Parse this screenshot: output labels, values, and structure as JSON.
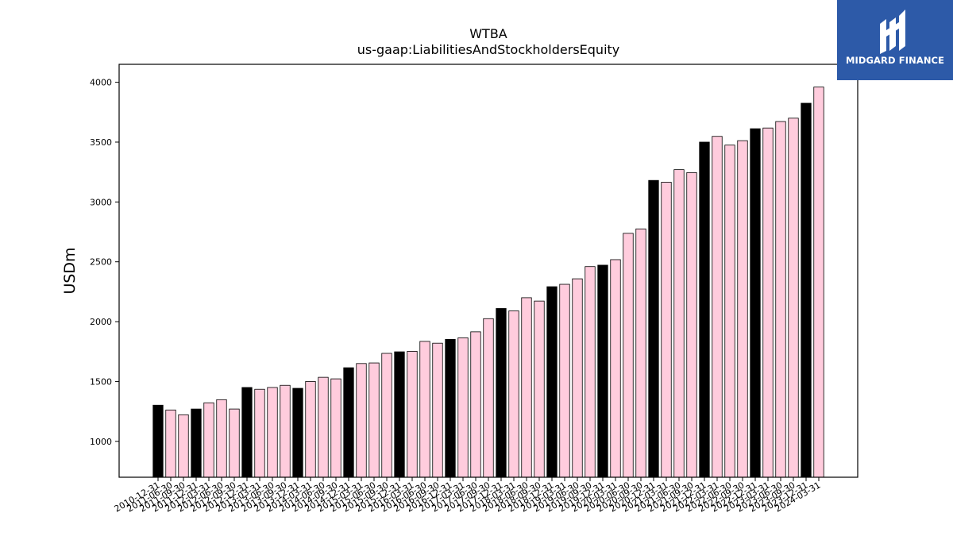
{
  "brand": {
    "name": "MIDGARD FINANCE",
    "icon": "midgard-logo-mark",
    "background_color": "#2d5aa8"
  },
  "chart_data": {
    "type": "bar",
    "title": "WTBA",
    "subtitle": "us-gaap:LiabilitiesAndStockholdersEquity",
    "xlabel": "",
    "ylabel": "USDm",
    "ylim": [
      700,
      4150
    ],
    "yticks": [
      1000,
      1500,
      2000,
      2500,
      3000,
      3500,
      4000
    ],
    "grid": false,
    "colors": {
      "annual": "#000000",
      "quarterly": "#ffccdd",
      "edge": "#000000"
    },
    "categories": [
      "2010-12-31",
      "2011-06-30",
      "2011-09-30",
      "2011-12-31",
      "2012-03-31",
      "2012-06-30",
      "2012-09-30",
      "2012-12-31",
      "2013-03-31",
      "2013-06-30",
      "2013-09-30",
      "2013-12-31",
      "2014-03-31",
      "2014-06-30",
      "2014-09-30",
      "2014-12-31",
      "2015-03-31",
      "2015-06-30",
      "2015-09-30",
      "2015-12-31",
      "2016-03-31",
      "2016-06-30",
      "2016-09-30",
      "2016-12-31",
      "2017-03-31",
      "2017-06-30",
      "2017-09-30",
      "2017-12-31",
      "2018-03-31",
      "2018-06-30",
      "2018-09-30",
      "2018-12-31",
      "2019-03-31",
      "2019-06-30",
      "2019-09-30",
      "2019-12-31",
      "2020-03-31",
      "2020-06-30",
      "2020-09-30",
      "2020-12-31",
      "2021-03-31",
      "2021-06-30",
      "2021-09-30",
      "2021-12-31",
      "2022-03-31",
      "2022-06-30",
      "2022-09-30",
      "2022-12-31",
      "2023-03-31",
      "2023-06-30",
      "2023-09-30",
      "2023-12-31",
      "2024-03-31"
    ],
    "values": [
      1302,
      1262,
      1222,
      1270,
      1322,
      1348,
      1270,
      1450,
      1435,
      1450,
      1468,
      1443,
      1500,
      1535,
      1522,
      1615,
      1650,
      1655,
      1735,
      1748,
      1752,
      1835,
      1820,
      1852,
      1865,
      1915,
      2025,
      2110,
      2090,
      2200,
      2172,
      2292,
      2312,
      2358,
      2460,
      2472,
      2518,
      2738,
      2775,
      3180,
      3165,
      3270,
      3245,
      3500,
      3548,
      3475,
      3512,
      3612,
      3618,
      3672,
      3700,
      3825,
      3960
    ],
    "is_annual": [
      true,
      false,
      false,
      true,
      false,
      false,
      false,
      true,
      false,
      false,
      false,
      true,
      false,
      false,
      false,
      true,
      false,
      false,
      false,
      true,
      false,
      false,
      false,
      true,
      false,
      false,
      false,
      true,
      false,
      false,
      false,
      true,
      false,
      false,
      false,
      true,
      false,
      false,
      false,
      true,
      false,
      false,
      false,
      true,
      false,
      false,
      false,
      true,
      false,
      false,
      false,
      true,
      false
    ]
  }
}
